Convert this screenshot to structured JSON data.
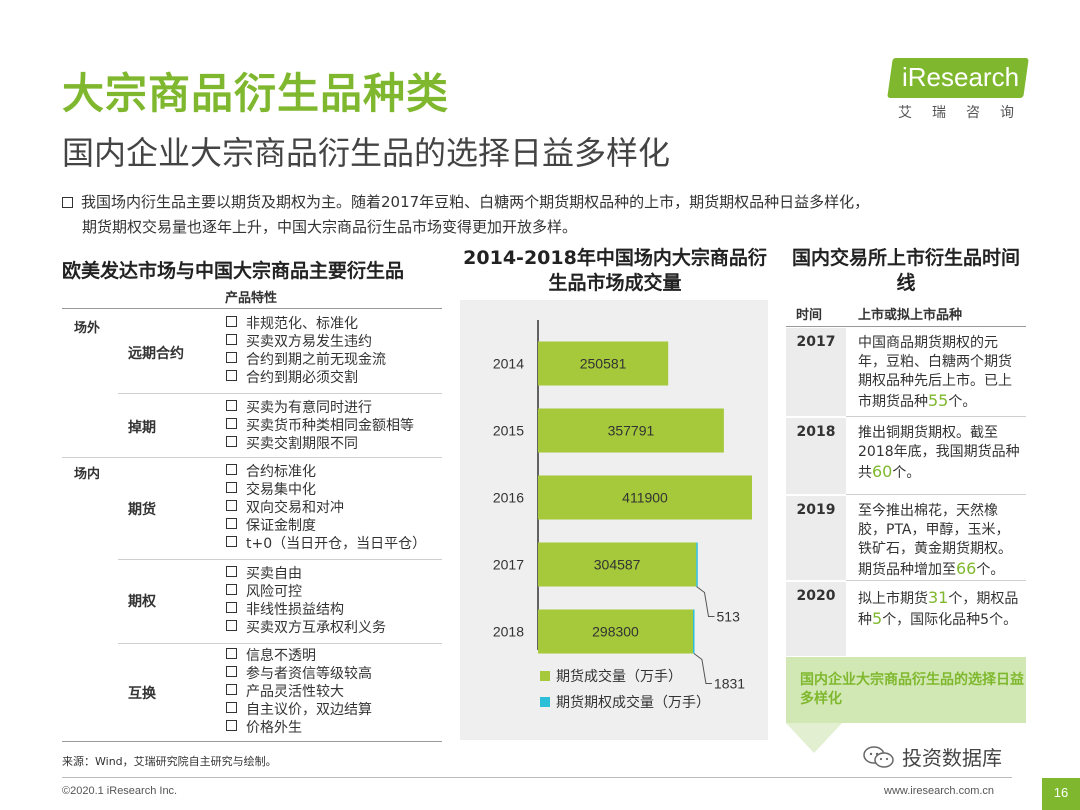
{
  "title": "大宗商品衍生品种类",
  "subtitle": "国内企业大宗商品衍生品的选择日益多样化",
  "logo": {
    "text": "iResearch",
    "cn": "艾瑞咨询",
    "brand_color": "#7fb82e"
  },
  "bullet": {
    "line1": "我国场内衍生品主要以期货及期权为主。随着2017年豆粕、白糖两个期货期权品种的上市，期货期权品种日益多样化，",
    "line2": "期货期权交易量也逐年上升，中国大宗商品衍生品市场变得更加开放多样。"
  },
  "left_panel": {
    "title": "欧美发达市场与中国大宗商品主要衍生品",
    "col_header": "产品特性",
    "groups": [
      {
        "label": "场外"
      },
      {
        "label": "场内"
      }
    ],
    "products": [
      {
        "name": "远期合约",
        "features": [
          "非规范化、标准化",
          "买卖双方易发生违约",
          "合约到期之前无现金流",
          "合约到期必须交割"
        ]
      },
      {
        "name": "掉期",
        "features": [
          "买卖为有意同时进行",
          "买卖货币种类相同金额相等",
          "买卖交割期限不同"
        ]
      },
      {
        "name": "期货",
        "features": [
          "合约标准化",
          "交易集中化",
          "双向交易和对冲",
          "保证金制度",
          "t+0（当日开仓，当日平仓）"
        ]
      },
      {
        "name": "期权",
        "features": [
          "买卖自由",
          "风险可控",
          "非线性损益结构",
          "买卖双方互承权利义务"
        ]
      },
      {
        "name": "互换",
        "features": [
          "信息不透明",
          "参与者资信等级较高",
          "产品灵活性较大",
          "自主议价，双边结算",
          "价格外生"
        ]
      }
    ]
  },
  "chart_data": {
    "type": "bar",
    "orientation": "horizontal",
    "stacked": true,
    "title": "2014-2018年中国场内大宗商品衍生品市场成交量",
    "categories": [
      "2014",
      "2015",
      "2016",
      "2017",
      "2018"
    ],
    "series": [
      {
        "name": "期货成交量（万手）",
        "color": "#a5c93a",
        "values": [
          250581,
          357791,
          411900,
          304587,
          298300
        ]
      },
      {
        "name": "期货期权成交量（万手）",
        "color": "#2bbfd8",
        "values": [
          0,
          0,
          0,
          513,
          1831
        ]
      }
    ],
    "callouts": [
      "513",
      "1831"
    ],
    "xlim": [
      0,
      411900
    ],
    "grid": false,
    "legend": "bottom"
  },
  "right_panel": {
    "title": "国内交易所上市衍生品时间线",
    "head_time": "时间",
    "head_item": "上市或拟上市品种",
    "rows": [
      {
        "year": "2017",
        "pre": "中国商品期货期权的元年，豆粕、白糖两个期货期权品种先后上市。已上市期货品种",
        "hl": "55",
        "post": "个。"
      },
      {
        "year": "2018",
        "pre": "推出铜期货期权。截至2018年底，我国期货品种共",
        "hl": "60",
        "post": "个。"
      },
      {
        "year": "2019",
        "pre": "至今推出棉花，天然橡胶，PTA，甲醇，玉米，铁矿石，黄金期货期权。期货品种增加至",
        "hl": "66",
        "post": "个。"
      },
      {
        "year": "2020",
        "pre": "拟上市期货",
        "hl": "31",
        "mid": "个，期权品种",
        "hl2": "5",
        "post": "个，国际化品种5个。"
      }
    ],
    "conclusion": "国内企业大宗商品衍生品的选择日益多样化"
  },
  "source": "来源：Wind，艾瑞研究院自主研究与绘制。",
  "footer": {
    "copyright": "©2020.1 iResearch Inc.",
    "website": "www.iresearch.com.cn",
    "page": "16",
    "wechat": "投资数据库"
  }
}
